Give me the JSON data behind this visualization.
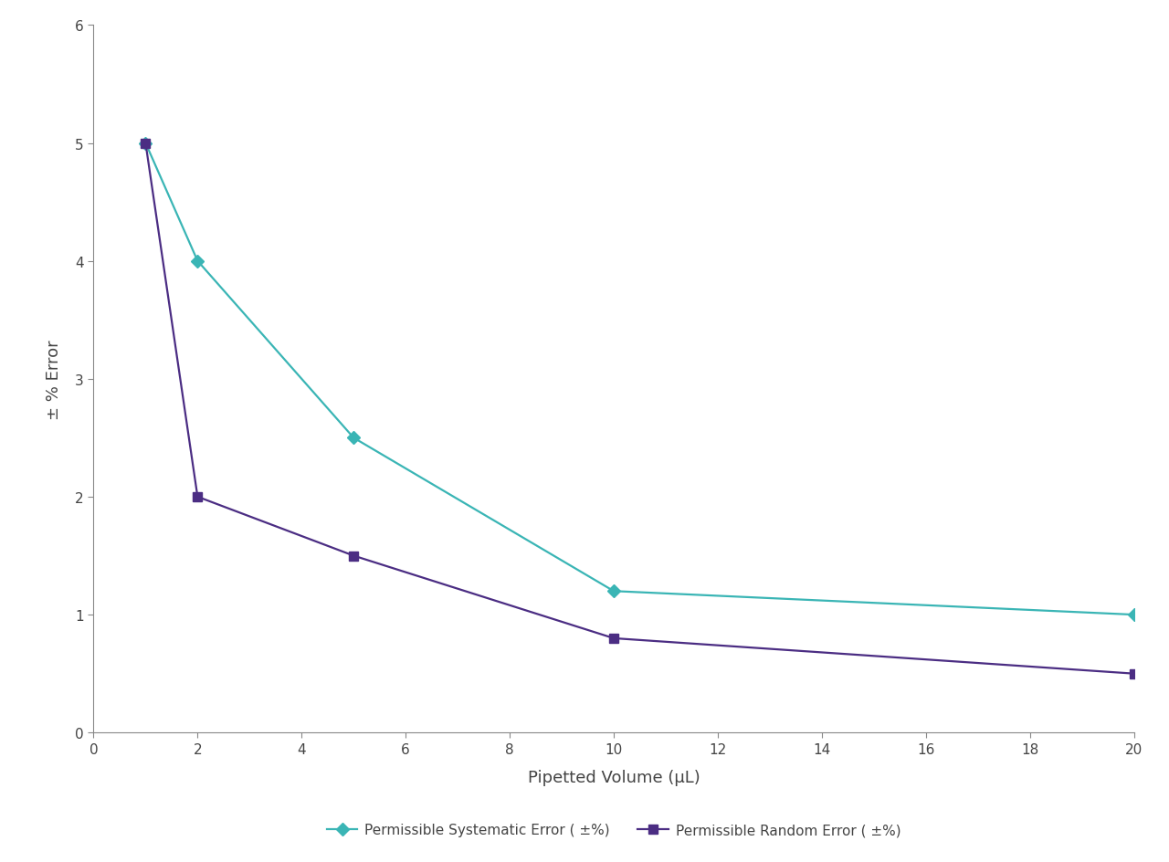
{
  "systematic_x": [
    1,
    2,
    5,
    10,
    20
  ],
  "systematic_y": [
    5.0,
    4.0,
    2.5,
    1.2,
    1.0
  ],
  "random_x": [
    1,
    2,
    5,
    10,
    20
  ],
  "random_y": [
    5.0,
    2.0,
    1.5,
    0.8,
    0.5
  ],
  "systematic_color": "#3ab5b5",
  "random_color": "#4b2d83",
  "xlabel": "Pipetted Volume (μL)",
  "ylabel": "± % Error",
  "xlim": [
    0,
    20
  ],
  "ylim": [
    0,
    6
  ],
  "xticks": [
    0,
    2,
    4,
    6,
    8,
    10,
    12,
    14,
    16,
    18,
    20
  ],
  "yticks": [
    0,
    1,
    2,
    3,
    4,
    5,
    6
  ],
  "systematic_label": "Permissible Systematic Error ( ±%)",
  "random_label": "Permissible Random Error ( ±%)",
  "background_color": "#ffffff",
  "linewidth": 1.6,
  "markersize": 7,
  "systematic_marker": "D",
  "random_marker": "s",
  "font_color": "#444444",
  "axis_label_fontsize": 13,
  "tick_fontsize": 11,
  "legend_fontsize": 11,
  "spine_color": "#888888",
  "tick_color": "#888888"
}
